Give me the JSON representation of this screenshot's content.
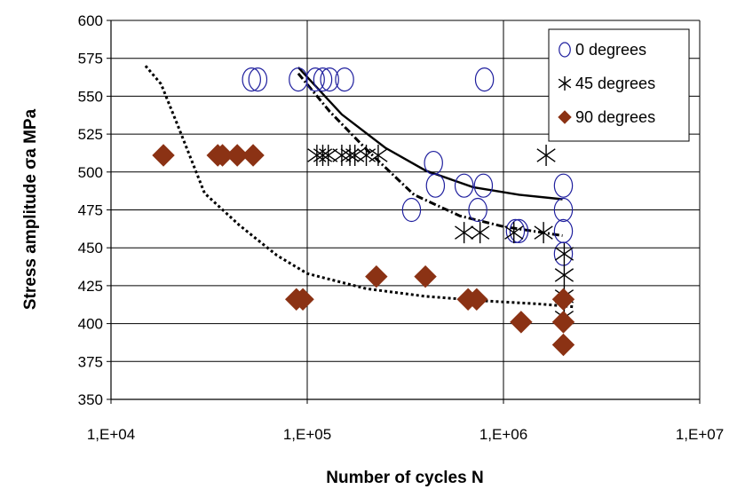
{
  "chart_data": {
    "type": "scatter",
    "title": "",
    "xlabel": "Number of cycles N",
    "ylabel": "Stress amplitude σa MPa",
    "x_scale": "log",
    "xlim": [
      10000,
      10000000
    ],
    "ylim": [
      350,
      600
    ],
    "x_ticks": [
      10000,
      100000,
      1000000,
      10000000
    ],
    "x_tick_labels": [
      "1,E+04",
      "1,E+05",
      "1,E+06",
      "1,E+07"
    ],
    "y_ticks": [
      350,
      375,
      400,
      425,
      450,
      475,
      500,
      525,
      550,
      575,
      600
    ],
    "y_tick_labels": [
      "350",
      "375",
      "400",
      "425",
      "450",
      "475",
      "500",
      "525",
      "550",
      "575",
      "600"
    ],
    "grid": true,
    "legend_position": "top-right",
    "series": [
      {
        "name": "0 degrees",
        "marker": "circle",
        "color": "#1f1f9e",
        "points": [
          [
            52000,
            561
          ],
          [
            56000,
            561
          ],
          [
            90000,
            561
          ],
          [
            110000,
            561
          ],
          [
            120000,
            561
          ],
          [
            130000,
            561
          ],
          [
            155000,
            561
          ],
          [
            800000,
            561
          ],
          [
            440000,
            506
          ],
          [
            450000,
            491
          ],
          [
            340000,
            475
          ],
          [
            630000,
            491
          ],
          [
            790000,
            491
          ],
          [
            740000,
            475
          ],
          [
            1150000,
            461
          ],
          [
            1200000,
            461
          ],
          [
            2020000,
            491
          ],
          [
            2020000,
            475
          ],
          [
            2020000,
            461
          ],
          [
            2020000,
            446
          ]
        ]
      },
      {
        "name": "45 degrees",
        "marker": "asterisk",
        "color": "#000000",
        "points": [
          [
            112000,
            511
          ],
          [
            120000,
            511
          ],
          [
            128000,
            511
          ],
          [
            150000,
            511
          ],
          [
            165000,
            511
          ],
          [
            175000,
            511
          ],
          [
            200000,
            511
          ],
          [
            230000,
            511
          ],
          [
            1650000,
            511
          ],
          [
            630000,
            460
          ],
          [
            760000,
            460
          ],
          [
            1130000,
            460
          ],
          [
            1600000,
            460
          ],
          [
            2040000,
            446
          ],
          [
            2040000,
            432
          ],
          [
            2040000,
            418
          ],
          [
            2040000,
            404
          ]
        ]
      },
      {
        "name": "90 degrees",
        "marker": "diamond",
        "color": "#8b3214",
        "points": [
          [
            18500,
            511
          ],
          [
            35000,
            511
          ],
          [
            37000,
            511
          ],
          [
            44000,
            511
          ],
          [
            53000,
            511
          ],
          [
            88000,
            416
          ],
          [
            95000,
            416
          ],
          [
            225000,
            431
          ],
          [
            400000,
            431
          ],
          [
            660000,
            416
          ],
          [
            730000,
            416
          ],
          [
            1230000,
            401
          ],
          [
            2020000,
            416
          ],
          [
            2020000,
            401
          ],
          [
            2020000,
            386
          ]
        ]
      }
    ],
    "trendlines": [
      {
        "style": "solid",
        "color": "#000000",
        "points": [
          [
            90000,
            569
          ],
          [
            150000,
            538
          ],
          [
            250000,
            516
          ],
          [
            400000,
            501
          ],
          [
            700000,
            490
          ],
          [
            1200000,
            485
          ],
          [
            2000000,
            482
          ]
        ]
      },
      {
        "style": "dash-dot",
        "color": "#000000",
        "points": [
          [
            90000,
            565
          ],
          [
            130000,
            540
          ],
          [
            200000,
            515
          ],
          [
            350000,
            485
          ],
          [
            600000,
            471
          ],
          [
            1000000,
            464
          ],
          [
            2000000,
            458
          ]
        ]
      },
      {
        "style": "dotted",
        "color": "#000000",
        "points": [
          [
            15000,
            570
          ],
          [
            18000,
            558
          ],
          [
            22000,
            530
          ],
          [
            30000,
            486
          ],
          [
            45000,
            465
          ],
          [
            70000,
            445
          ],
          [
            100000,
            433
          ],
          [
            200000,
            423
          ],
          [
            400000,
            418
          ],
          [
            800000,
            415
          ],
          [
            1500000,
            413
          ],
          [
            2300000,
            411
          ]
        ]
      }
    ]
  }
}
